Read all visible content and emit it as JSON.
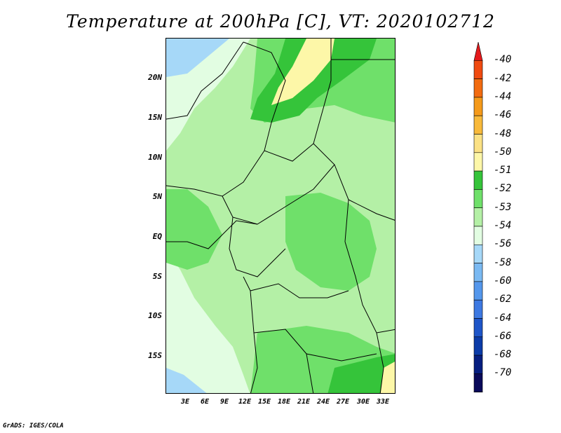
{
  "title": "Temperature at 200hPa [C], VT: 2020102712",
  "credit": "GrADS: IGES/COLA",
  "map": {
    "lat_labels": [
      "20N",
      "15N",
      "10N",
      "5N",
      "EQ",
      "5S",
      "10S",
      "15S"
    ],
    "lon_labels": [
      "3E",
      "6E",
      "9E",
      "12E",
      "15E",
      "18E",
      "21E",
      "24E",
      "27E",
      "30E",
      "33E"
    ]
  },
  "legend": {
    "labels": [
      "-40",
      "-42",
      "-44",
      "-46",
      "-48",
      "-50",
      "-51",
      "-52",
      "-53",
      "-54",
      "-56",
      "-58",
      "-60",
      "-62",
      "-64",
      "-66",
      "-68",
      "-70"
    ],
    "colors": [
      "#e41a1c",
      "#f04a10",
      "#f26b10",
      "#f59a1a",
      "#f8b93a",
      "#fbe184",
      "#fdf7a8",
      "#35c43a",
      "#6fe06a",
      "#b4f0a6",
      "#e2fde2",
      "#a6d8f8",
      "#7ab9f2",
      "#5497ec",
      "#3d79e2",
      "#1e55c8",
      "#0b3ba8",
      "#061e80",
      "#0a0a5a",
      "#d8d4f0"
    ]
  }
}
